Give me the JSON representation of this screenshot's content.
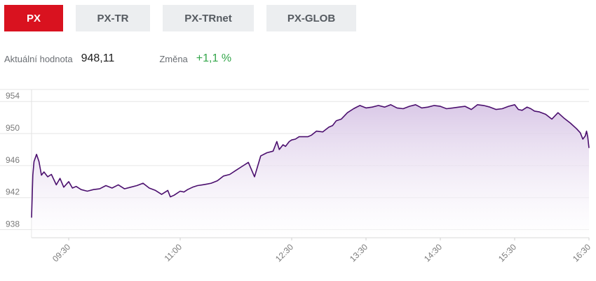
{
  "tabs": [
    {
      "label": "PX",
      "active": true
    },
    {
      "label": "PX-TR",
      "active": false
    },
    {
      "label": "PX-TRnet",
      "active": false
    },
    {
      "label": "PX-GLOB",
      "active": false
    }
  ],
  "info": {
    "current_label": "Aktuální hodnota",
    "current_value": "948,11",
    "change_label": "Změna",
    "change_value": "+1,1 %"
  },
  "colors": {
    "accent_red": "#d9121f",
    "line": "#4b0f6e",
    "area": "#d8c6e6",
    "positive": "#33a64a"
  },
  "chart_data": {
    "type": "area",
    "title": "",
    "xlabel": "",
    "ylabel": "",
    "x_ticks": [
      "09:30",
      "11:00",
      "12:30",
      "13:30",
      "14:30",
      "15:30",
      "16:30"
    ],
    "x_tick_minutes": [
      570,
      660,
      750,
      810,
      870,
      930,
      990
    ],
    "y_ticks": [
      938,
      942,
      946,
      950,
      954
    ],
    "xlim": [
      540,
      990
    ],
    "ylim": [
      937,
      955.5
    ],
    "grid": true,
    "series": [
      {
        "x": [
          540,
          541,
          542,
          544,
          546,
          548,
          550,
          553,
          556,
          560,
          563,
          566,
          570,
          573,
          576,
          580,
          585,
          590,
          595,
          600,
          605,
          610,
          615,
          620,
          625,
          630,
          635,
          640,
          645,
          650,
          652,
          655,
          658,
          660,
          663,
          666,
          670,
          674,
          678,
          682,
          685,
          690,
          695,
          700,
          705,
          710,
          715,
          720,
          725,
          730,
          735,
          738,
          740,
          743,
          745,
          748,
          750,
          753,
          756,
          760,
          763,
          766,
          770,
          775,
          780,
          783,
          786,
          790,
          795,
          800,
          805,
          810,
          815,
          820,
          825,
          830,
          835,
          840,
          845,
          850,
          855,
          860,
          865,
          870,
          875,
          880,
          885,
          890,
          895,
          900,
          905,
          910,
          915,
          920,
          925,
          930,
          933,
          936,
          940,
          943,
          946,
          950,
          955,
          960,
          965,
          970,
          975,
          980,
          983,
          985,
          987,
          988,
          989,
          990
        ],
        "y": [
          939.5,
          944.8,
          946.5,
          947.4,
          946.5,
          944.8,
          945.2,
          944.6,
          944.9,
          943.6,
          944.4,
          943.3,
          944.0,
          943.2,
          943.4,
          943.0,
          942.8,
          943.0,
          943.1,
          943.5,
          943.2,
          943.6,
          943.1,
          943.3,
          943.5,
          943.8,
          943.2,
          942.9,
          942.4,
          942.9,
          942.1,
          942.3,
          942.6,
          942.8,
          942.7,
          943.0,
          943.3,
          943.5,
          943.6,
          943.7,
          943.8,
          944.1,
          944.7,
          944.9,
          945.4,
          945.9,
          946.4,
          944.6,
          947.2,
          947.6,
          947.8,
          949.0,
          948.0,
          948.6,
          948.4,
          949.0,
          949.2,
          949.3,
          949.6,
          949.6,
          949.6,
          949.8,
          950.3,
          950.2,
          950.8,
          951.0,
          951.6,
          951.8,
          952.6,
          953.1,
          953.5,
          953.2,
          953.3,
          953.5,
          953.3,
          953.6,
          953.2,
          953.1,
          953.4,
          953.6,
          953.2,
          953.3,
          953.5,
          953.4,
          953.1,
          953.2,
          953.3,
          953.4,
          953.0,
          953.6,
          953.5,
          953.3,
          953.0,
          953.1,
          953.4,
          953.6,
          953.0,
          952.9,
          953.3,
          953.1,
          952.8,
          952.7,
          952.4,
          951.8,
          952.6,
          951.9,
          951.3,
          950.6,
          950.1,
          949.3,
          949.7,
          950.3,
          949.6,
          948.2
        ]
      }
    ]
  }
}
